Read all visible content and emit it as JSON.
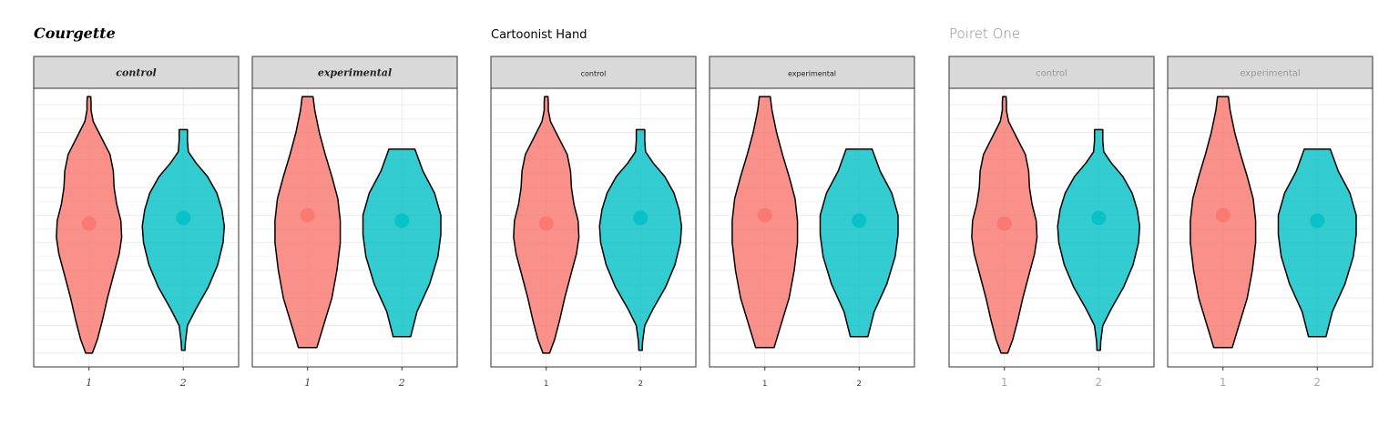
{
  "chart_data": {
    "type": "violin",
    "colors": {
      "1": "#F8766D",
      "2": "#00BFC4"
    },
    "grid": true,
    "panels_per_group": [
      "control",
      "experimental"
    ],
    "x_categories": [
      "1",
      "2"
    ],
    "groups": [
      {
        "title": "Courgette",
        "style": "courgette",
        "strips": [
          "control",
          "experimental"
        ],
        "ticks": [
          "1",
          "2"
        ]
      },
      {
        "title": "Cartoonist Hand",
        "style": "cartoonist",
        "strips": [
          "control",
          "experimental"
        ],
        "ticks": [
          "1",
          "2"
        ]
      },
      {
        "title": "Poiret One",
        "style": "poiret",
        "strips": [
          "control",
          "experimental"
        ],
        "ticks": [
          "1",
          "2"
        ]
      }
    ],
    "panels": {
      "control": {
        "1": {
          "ymin": 1.0,
          "ymax": 10.3,
          "mean": 5.7,
          "profile": [
            [
              1.0,
              0.08
            ],
            [
              1.5,
              0.2
            ],
            [
              2.2,
              0.32
            ],
            [
              3.0,
              0.44
            ],
            [
              3.8,
              0.58
            ],
            [
              4.6,
              0.72
            ],
            [
              5.2,
              0.78
            ],
            [
              5.8,
              0.76
            ],
            [
              6.4,
              0.66
            ],
            [
              7.0,
              0.6
            ],
            [
              7.6,
              0.58
            ],
            [
              8.2,
              0.5
            ],
            [
              8.8,
              0.3
            ],
            [
              9.4,
              0.1
            ],
            [
              9.8,
              0.05
            ],
            [
              10.1,
              0.05
            ],
            [
              10.3,
              0.04
            ]
          ]
        },
        "2": {
          "ymin": 1.1,
          "ymax": 9.1,
          "mean": 5.9,
          "profile": [
            [
              1.1,
              0.04
            ],
            [
              1.4,
              0.05
            ],
            [
              2.0,
              0.1
            ],
            [
              2.6,
              0.3
            ],
            [
              3.4,
              0.6
            ],
            [
              4.2,
              0.82
            ],
            [
              5.0,
              0.95
            ],
            [
              5.6,
              0.98
            ],
            [
              6.2,
              0.92
            ],
            [
              6.8,
              0.8
            ],
            [
              7.4,
              0.58
            ],
            [
              7.9,
              0.3
            ],
            [
              8.3,
              0.12
            ],
            [
              8.7,
              0.1
            ],
            [
              9.1,
              0.1
            ]
          ]
        }
      },
      "experimental": {
        "1": {
          "ymin": 1.2,
          "ymax": 10.3,
          "mean": 6.0,
          "profile": [
            [
              1.2,
              0.22
            ],
            [
              2.0,
              0.38
            ],
            [
              3.0,
              0.58
            ],
            [
              4.0,
              0.7
            ],
            [
              5.0,
              0.78
            ],
            [
              5.8,
              0.78
            ],
            [
              6.6,
              0.72
            ],
            [
              7.4,
              0.58
            ],
            [
              8.2,
              0.42
            ],
            [
              9.0,
              0.28
            ],
            [
              9.8,
              0.17
            ],
            [
              10.3,
              0.13
            ]
          ]
        },
        "2": {
          "ymin": 1.6,
          "ymax": 8.4,
          "mean": 5.8,
          "profile": [
            [
              1.6,
              0.21
            ],
            [
              2.5,
              0.36
            ],
            [
              3.5,
              0.66
            ],
            [
              4.5,
              0.86
            ],
            [
              5.3,
              0.93
            ],
            [
              6.0,
              0.93
            ],
            [
              6.8,
              0.78
            ],
            [
              7.6,
              0.5
            ],
            [
              8.4,
              0.31
            ]
          ]
        }
      }
    },
    "ylim": [
      0.5,
      10.6
    ]
  }
}
